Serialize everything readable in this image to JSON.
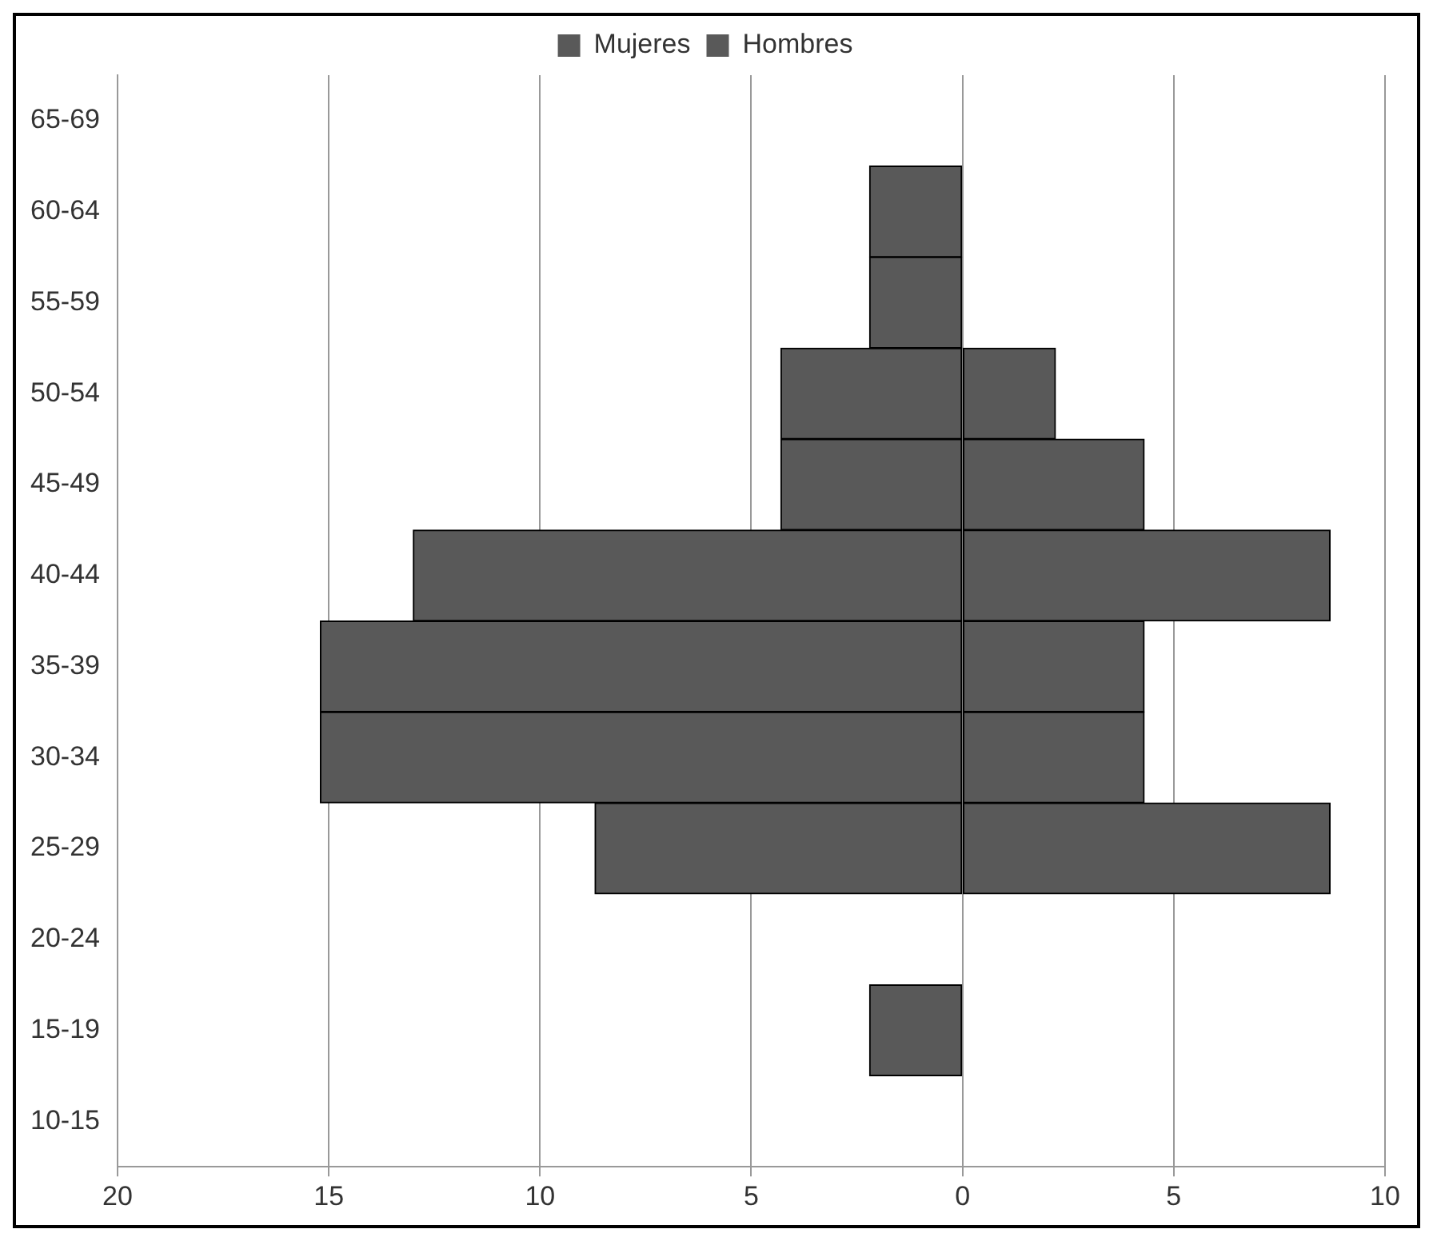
{
  "chart_data": {
    "type": "bar",
    "orientation": "horizontal",
    "stacked": true,
    "categories": [
      "65-69",
      "60-64",
      "55-59",
      "50-54",
      "45-49",
      "40-44",
      "35-39",
      "30-34",
      "25-29",
      "20-24",
      "15-19",
      "10-15"
    ],
    "series": [
      {
        "name": "Mujeres",
        "color": "#595959",
        "values": [
          null,
          -2.2,
          -2.2,
          -4.3,
          -4.3,
          -13.0,
          -15.2,
          -15.2,
          -8.7,
          null,
          -2.2,
          null
        ]
      },
      {
        "name": "Hombres",
        "color": "#595959",
        "values": [
          null,
          null,
          null,
          2.2,
          4.3,
          8.7,
          4.3,
          4.3,
          8.7,
          null,
          null,
          null
        ]
      }
    ],
    "xlim": [
      -20,
      10
    ],
    "xticks": [
      {
        "value": -20,
        "label": "20"
      },
      {
        "value": -15,
        "label": "15"
      },
      {
        "value": -10,
        "label": "10"
      },
      {
        "value": -5,
        "label": "5"
      },
      0,
      5,
      10
    ],
    "grid": "x",
    "legend": "top"
  }
}
